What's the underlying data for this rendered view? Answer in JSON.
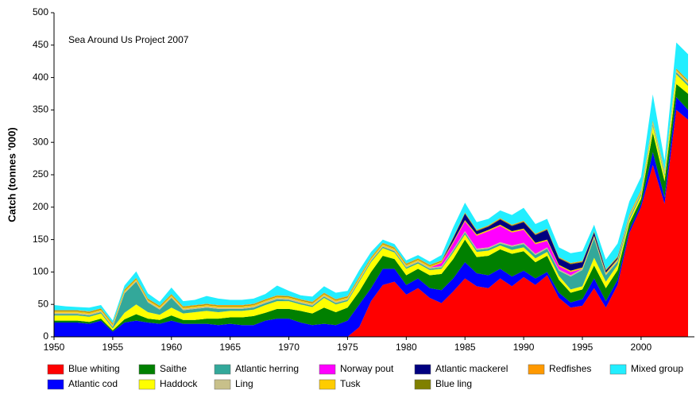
{
  "chart_data": {
    "type": "stacked-area",
    "annotation": "Sea Around Us Project 2007",
    "y_label": "Catch (tonnes '000)",
    "x": [
      1950,
      1951,
      1952,
      1953,
      1954,
      1955,
      1956,
      1957,
      1958,
      1959,
      1960,
      1961,
      1962,
      1963,
      1964,
      1965,
      1966,
      1967,
      1968,
      1969,
      1970,
      1971,
      1972,
      1973,
      1974,
      1975,
      1976,
      1977,
      1978,
      1979,
      1980,
      1981,
      1982,
      1983,
      1984,
      1985,
      1986,
      1987,
      1988,
      1989,
      1990,
      1991,
      1992,
      1993,
      1994,
      1995,
      1996,
      1997,
      1998,
      1999,
      2000,
      2001,
      2002,
      2003,
      2004
    ],
    "xlim": [
      1950,
      2004
    ],
    "xticks": [
      1950,
      1955,
      1960,
      1965,
      1970,
      1975,
      1980,
      1985,
      1990,
      1995,
      2000
    ],
    "ylim": [
      0,
      500
    ],
    "yticks": [
      0,
      50,
      100,
      150,
      200,
      250,
      300,
      350,
      400,
      450,
      500
    ],
    "series": [
      {
        "name": "Blue whiting",
        "color": "#ff0000",
        "values": [
          0,
          0,
          0,
          0,
          0,
          0,
          0,
          0,
          0,
          0,
          0,
          0,
          0,
          0,
          0,
          0,
          0,
          0,
          0,
          0,
          0,
          0,
          0,
          0,
          0,
          0,
          15,
          55,
          80,
          85,
          65,
          75,
          60,
          52,
          70,
          90,
          78,
          75,
          90,
          78,
          92,
          80,
          95,
          60,
          45,
          48,
          75,
          45,
          80,
          160,
          200,
          265,
          205,
          350,
          335
        ]
      },
      {
        "name": "Atlantic cod",
        "color": "#0000ff",
        "values": [
          22,
          22,
          22,
          20,
          25,
          8,
          22,
          25,
          22,
          20,
          25,
          20,
          20,
          20,
          18,
          20,
          18,
          18,
          25,
          28,
          28,
          22,
          18,
          20,
          18,
          25,
          35,
          20,
          25,
          20,
          15,
          15,
          15,
          20,
          20,
          25,
          20,
          20,
          15,
          15,
          10,
          10,
          5,
          8,
          8,
          10,
          15,
          10,
          8,
          5,
          5,
          20,
          10,
          20,
          15
        ]
      },
      {
        "name": "Saithe",
        "color": "#008000",
        "values": [
          3,
          3,
          3,
          3,
          3,
          2,
          5,
          10,
          6,
          6,
          8,
          6,
          6,
          8,
          10,
          10,
          12,
          14,
          12,
          15,
          15,
          18,
          18,
          25,
          20,
          20,
          20,
          25,
          20,
          15,
          15,
          15,
          20,
          25,
          30,
          35,
          25,
          30,
          30,
          35,
          30,
          25,
          25,
          20,
          15,
          15,
          20,
          20,
          15,
          10,
          8,
          30,
          25,
          20,
          25
        ]
      },
      {
        "name": "Haddock",
        "color": "#ffff00",
        "values": [
          8,
          8,
          8,
          8,
          8,
          3,
          10,
          15,
          10,
          8,
          12,
          10,
          12,
          12,
          10,
          10,
          10,
          10,
          12,
          12,
          12,
          10,
          10,
          15,
          12,
          10,
          15,
          15,
          12,
          10,
          10,
          8,
          8,
          8,
          10,
          8,
          8,
          8,
          6,
          6,
          6,
          6,
          6,
          6,
          5,
          5,
          12,
          10,
          8,
          5,
          5,
          10,
          8,
          15,
          12
        ]
      },
      {
        "name": "Atlantic herring",
        "color": "#33a89a",
        "values": [
          2,
          2,
          2,
          2,
          2,
          2,
          30,
          35,
          15,
          8,
          15,
          5,
          5,
          5,
          5,
          3,
          3,
          3,
          3,
          3,
          2,
          2,
          2,
          2,
          2,
          2,
          2,
          2,
          2,
          2,
          2,
          2,
          2,
          2,
          3,
          3,
          3,
          3,
          3,
          5,
          5,
          5,
          5,
          8,
          20,
          25,
          30,
          10,
          5,
          3,
          3,
          3,
          3,
          3,
          3
        ]
      },
      {
        "name": "Ling",
        "color": "#c8c08a",
        "values": [
          2,
          2,
          2,
          2,
          2,
          2,
          2,
          2,
          2,
          2,
          2,
          2,
          2,
          2,
          2,
          2,
          2,
          2,
          2,
          2,
          2,
          2,
          2,
          2,
          2,
          2,
          2,
          2,
          2,
          2,
          2,
          2,
          2,
          2,
          2,
          2,
          2,
          2,
          2,
          2,
          2,
          2,
          2,
          2,
          2,
          2,
          2,
          2,
          2,
          2,
          2,
          2,
          2,
          2,
          2
        ]
      },
      {
        "name": "Norway pout",
        "color": "#ff00ff",
        "values": [
          0,
          0,
          0,
          0,
          0,
          0,
          0,
          0,
          0,
          0,
          0,
          0,
          0,
          0,
          0,
          0,
          0,
          0,
          0,
          0,
          0,
          0,
          0,
          0,
          0,
          0,
          0,
          0,
          0,
          0,
          0,
          0,
          0,
          5,
          10,
          15,
          20,
          25,
          25,
          20,
          20,
          15,
          10,
          5,
          5,
          0,
          0,
          0,
          0,
          0,
          0,
          0,
          0,
          0,
          0
        ]
      },
      {
        "name": "Tusk",
        "color": "#ffcc00",
        "values": [
          2,
          2,
          2,
          2,
          2,
          2,
          2,
          2,
          2,
          2,
          2,
          2,
          2,
          2,
          2,
          2,
          2,
          2,
          2,
          2,
          2,
          2,
          2,
          2,
          2,
          2,
          2,
          2,
          2,
          2,
          2,
          2,
          2,
          2,
          2,
          2,
          2,
          2,
          2,
          2,
          2,
          2,
          2,
          2,
          2,
          2,
          2,
          2,
          2,
          2,
          2,
          2,
          2,
          2,
          2
        ]
      },
      {
        "name": "Atlantic mackerel",
        "color": "#000080",
        "values": [
          0,
          0,
          0,
          0,
          0,
          0,
          0,
          0,
          0,
          0,
          0,
          0,
          0,
          0,
          0,
          0,
          0,
          0,
          0,
          0,
          0,
          0,
          0,
          0,
          0,
          0,
          0,
          0,
          0,
          0,
          0,
          0,
          0,
          0,
          5,
          10,
          5,
          5,
          8,
          8,
          10,
          12,
          15,
          10,
          10,
          8,
          5,
          3,
          2,
          0,
          0,
          0,
          0,
          0,
          0
        ]
      },
      {
        "name": "Blue ling",
        "color": "#808000",
        "values": [
          1,
          1,
          1,
          1,
          1,
          1,
          1,
          1,
          1,
          1,
          1,
          1,
          1,
          1,
          1,
          1,
          1,
          1,
          1,
          1,
          1,
          1,
          1,
          1,
          1,
          1,
          1,
          1,
          1,
          1,
          1,
          1,
          1,
          1,
          1,
          1,
          1,
          1,
          1,
          1,
          1,
          1,
          1,
          1,
          1,
          1,
          1,
          1,
          1,
          1,
          1,
          1,
          1,
          1,
          1
        ]
      },
      {
        "name": "Redfishes",
        "color": "#ff9900",
        "values": [
          1,
          1,
          1,
          1,
          1,
          1,
          1,
          1,
          1,
          1,
          1,
          1,
          1,
          1,
          1,
          1,
          1,
          1,
          1,
          1,
          1,
          1,
          1,
          1,
          1,
          1,
          1,
          1,
          1,
          1,
          1,
          1,
          1,
          1,
          1,
          1,
          1,
          1,
          1,
          1,
          1,
          1,
          1,
          1,
          1,
          1,
          1,
          1,
          1,
          1,
          1,
          1,
          1,
          1,
          1
        ]
      },
      {
        "name": "Mixed group",
        "color": "#22eeff",
        "values": [
          8,
          6,
          5,
          6,
          5,
          4,
          6,
          10,
          8,
          6,
          10,
          8,
          8,
          12,
          10,
          8,
          8,
          8,
          8,
          15,
          8,
          6,
          8,
          10,
          10,
          8,
          10,
          8,
          5,
          5,
          5,
          5,
          5,
          8,
          15,
          15,
          12,
          10,
          12,
          15,
          20,
          15,
          15,
          15,
          15,
          15,
          10,
          15,
          20,
          20,
          20,
          40,
          15,
          40,
          40
        ]
      }
    ]
  }
}
